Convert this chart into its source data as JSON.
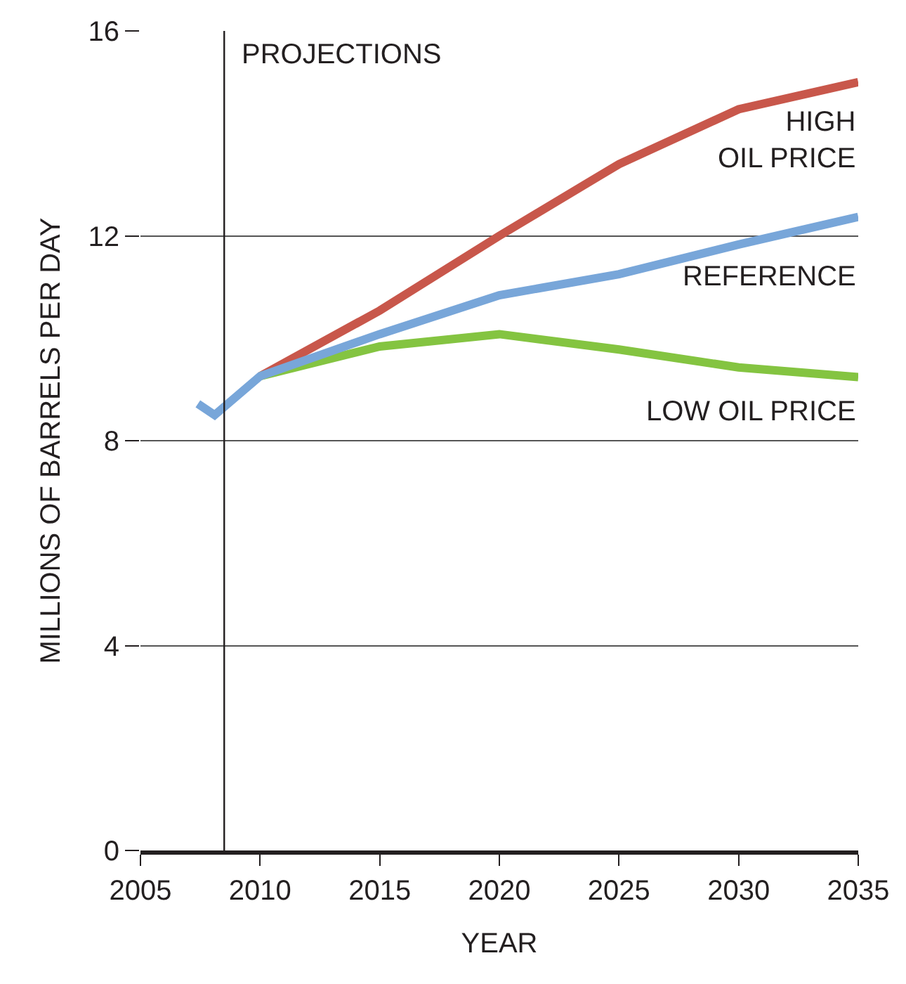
{
  "chart_data": {
    "type": "line",
    "xlabel": "YEAR",
    "ylabel": "MILLIONS OF BARRELS PER DAY",
    "xlim": [
      2005,
      2035
    ],
    "xticks": [
      2005,
      2010,
      2015,
      2020,
      2025,
      2030,
      2035
    ],
    "ylim": [
      0,
      16
    ],
    "yticks": [
      0,
      4,
      8,
      12,
      16
    ],
    "grid": "y",
    "legend": false,
    "marker": "none",
    "line_style": "solid",
    "ref_lines": [
      {
        "axis": "x",
        "value": 2008.5,
        "label": "PROJECTIONS",
        "color": "#231f20"
      }
    ],
    "series": [
      {
        "name": "HIGH\nOIL PRICE",
        "color": "#c8574b",
        "x": [
          2010,
          2015,
          2020,
          2025,
          2030,
          2035
        ],
        "values": [
          9.26,
          10.54,
          12.0,
          13.4,
          14.47,
          15.0
        ]
      },
      {
        "name": "LOW OIL PRICE",
        "color": "#84c441",
        "x": [
          2010,
          2015,
          2020,
          2025,
          2030,
          2035
        ],
        "values": [
          9.26,
          9.84,
          10.08,
          9.78,
          9.43,
          9.24
        ]
      },
      {
        "name": "REFERENCE",
        "color": "#78a6d9",
        "x": [
          2007.4,
          2008.1,
          2010,
          2015,
          2020,
          2025,
          2030,
          2035
        ],
        "values": [
          8.72,
          8.5,
          9.26,
          10.08,
          10.84,
          11.25,
          11.83,
          12.37
        ]
      }
    ]
  }
}
